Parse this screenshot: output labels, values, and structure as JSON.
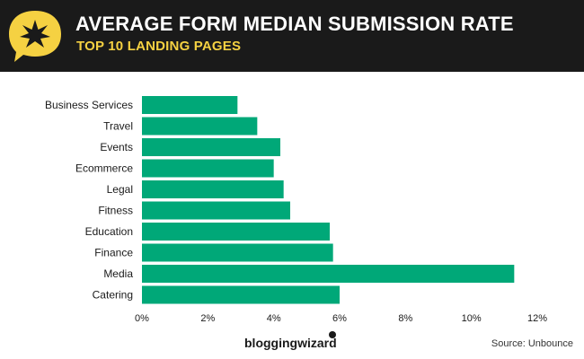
{
  "header": {
    "title": "AVERAGE FORM MEDIAN SUBMISSION RATE",
    "subtitle": "TOP 10 LANDING PAGES",
    "logo_icon": "star-speech-bubble-icon",
    "background_color": "#1a1a1a",
    "accent_color": "#f5d142"
  },
  "footer": {
    "brand": "bloggingwizard",
    "source": "Source: Unbounce"
  },
  "chart_data": {
    "type": "bar",
    "orientation": "horizontal",
    "title": "AVERAGE FORM MEDIAN SUBMISSION RATE",
    "subtitle": "TOP 10 LANDING PAGES",
    "xlabel": "",
    "ylabel": "",
    "categories": [
      "Business Services",
      "Travel",
      "Events",
      "Ecommerce",
      "Legal",
      "Fitness",
      "Education",
      "Finance",
      "Media",
      "Catering"
    ],
    "values": [
      2.9,
      3.5,
      4.2,
      4.0,
      4.3,
      4.5,
      5.7,
      5.8,
      11.3,
      6.0
    ],
    "unit": "%",
    "xlim": [
      0,
      12
    ],
    "xticks": [
      "0%",
      "2%",
      "4%",
      "6%",
      "8%",
      "10%",
      "12%"
    ],
    "grid": false,
    "legend": "none",
    "bar_color": "#00a878"
  }
}
